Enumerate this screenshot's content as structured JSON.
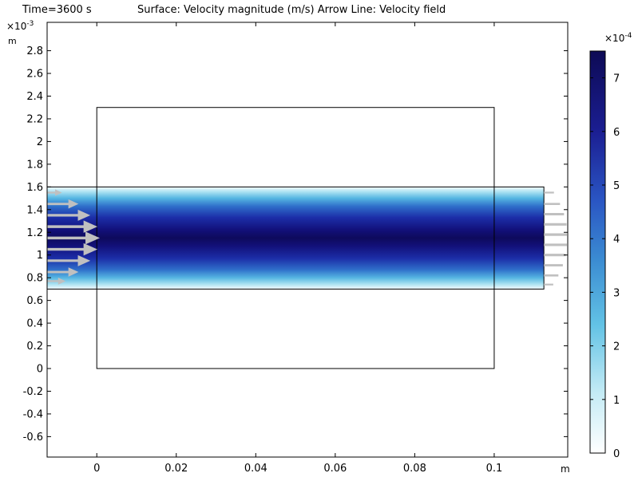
{
  "header": {
    "time_label": "Time=3600 s",
    "plot_label": "Surface: Velocity magnitude (m/s)  Arrow Line: Velocity field"
  },
  "chart_data": {
    "type": "heatmap",
    "x_axis": {
      "unit": "m",
      "range": [
        -0.0125,
        0.1185
      ],
      "ticks": [
        0,
        0.02,
        0.04,
        0.06,
        0.08,
        0.1
      ],
      "tick_labels": [
        "0",
        "0.02",
        "0.04",
        "0.06",
        "0.08",
        "0.1"
      ]
    },
    "y_axis": {
      "unit": "m",
      "multiplier": "×10⁻³",
      "multiplier_base": "×10",
      "multiplier_exp": "-3",
      "range": [
        -0.78,
        3.05
      ],
      "ticks": [
        -0.6,
        -0.4,
        -0.2,
        0,
        0.2,
        0.4,
        0.6,
        0.8,
        1,
        1.2,
        1.4,
        1.6,
        1.8,
        2,
        2.2,
        2.4,
        2.6,
        2.8
      ],
      "tick_labels": [
        "-0.6",
        "-0.4",
        "-0.2",
        "0",
        "0.2",
        "0.4",
        "0.6",
        "0.8",
        "1",
        "1.2",
        "1.4",
        "1.6",
        "1.8",
        "2",
        "2.2",
        "2.4",
        "2.6",
        "2.8"
      ]
    },
    "outer_box": {
      "x": [
        0,
        0.1
      ],
      "y": [
        0,
        2.3
      ]
    },
    "channel": {
      "x": [
        -0.0125,
        0.1125
      ],
      "y": [
        0.7,
        1.6
      ]
    },
    "velocity_profile": "parabolic, max at y=1.15e-3 m",
    "colorbar": {
      "multiplier": "×10⁻⁴",
      "multiplier_base": "×10",
      "multiplier_exp": "-4",
      "range": [
        0,
        7.5
      ],
      "ticks": [
        0,
        1,
        2,
        3,
        4,
        5,
        6,
        7
      ],
      "tick_labels": [
        "0",
        "1",
        "2",
        "3",
        "4",
        "5",
        "6",
        "7"
      ],
      "colors": [
        "#ffffff",
        "#b8e6f2",
        "#5fc0e4",
        "#3a8ad0",
        "#2950c0",
        "#1a1c90",
        "#0d0a58"
      ]
    },
    "arrow_color": "#c0c0c0",
    "inlet_arrow_y": [
      0.77,
      0.85,
      0.95,
      1.05,
      1.15,
      1.25,
      1.35,
      1.45,
      1.55
    ],
    "outlet_arrow_y": [
      0.74,
      0.82,
      0.91,
      1.0,
      1.09,
      1.18,
      1.27,
      1.36,
      1.45,
      1.55
    ]
  }
}
